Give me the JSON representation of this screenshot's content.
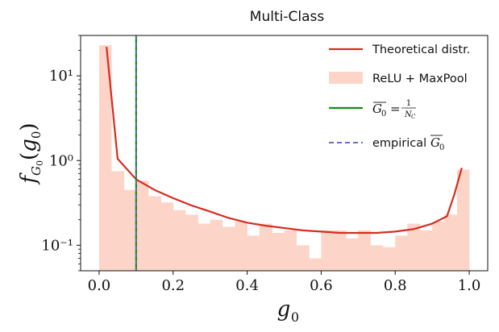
{
  "chart_data": {
    "type": "bar",
    "title": "Multi-Class",
    "xlabel": "g₀",
    "ylabel": "f_{G₀}(g₀)",
    "xscale": "linear",
    "yscale": "log",
    "xlim": [
      -0.05,
      1.05
    ],
    "ylim": [
      0.05,
      30
    ],
    "xticks": [
      0.0,
      0.2,
      0.4,
      0.6,
      0.8,
      1.0
    ],
    "xtick_labels": [
      "0.0",
      "0.2",
      "0.4",
      "0.6",
      "0.8",
      "1.0"
    ],
    "yticks": [
      0.1,
      1,
      10
    ],
    "ytick_labels": [
      "10⁻¹",
      "10⁰",
      "10¹"
    ],
    "legend_position": "top-right",
    "histogram": {
      "name": "ReLU + MaxPool",
      "color": "#fdd5c8",
      "bin_edges": [
        0.0,
        0.033,
        0.067,
        0.1,
        0.133,
        0.167,
        0.2,
        0.233,
        0.267,
        0.3,
        0.333,
        0.367,
        0.4,
        0.433,
        0.467,
        0.5,
        0.533,
        0.567,
        0.6,
        0.633,
        0.667,
        0.7,
        0.733,
        0.767,
        0.8,
        0.833,
        0.867,
        0.9,
        0.933,
        0.967,
        1.0
      ],
      "values": [
        23,
        0.75,
        0.45,
        0.58,
        0.38,
        0.32,
        0.26,
        0.23,
        0.18,
        0.2,
        0.165,
        0.19,
        0.13,
        0.18,
        0.14,
        0.15,
        0.1,
        0.07,
        0.15,
        0.15,
        0.12,
        0.15,
        0.1,
        0.095,
        0.13,
        0.18,
        0.15,
        0.19,
        0.23,
        0.78
      ]
    },
    "theoretical": {
      "name": "Theoretical distr.",
      "color": "#d62d20",
      "x": [
        0.02,
        0.05,
        0.1,
        0.15,
        0.2,
        0.25,
        0.3,
        0.35,
        0.4,
        0.45,
        0.5,
        0.55,
        0.6,
        0.65,
        0.7,
        0.75,
        0.8,
        0.85,
        0.9,
        0.94,
        0.96,
        0.98
      ],
      "y": [
        22,
        1.05,
        0.6,
        0.45,
        0.36,
        0.295,
        0.25,
        0.21,
        0.185,
        0.17,
        0.16,
        0.15,
        0.145,
        0.14,
        0.14,
        0.14,
        0.145,
        0.155,
        0.18,
        0.22,
        0.4,
        0.82
      ]
    },
    "vlines": [
      {
        "name": "G₀ bar = 1/N_C",
        "x": 0.1,
        "color": "#1a8a1a",
        "style": "solid"
      },
      {
        "name": "empirical G₀ bar",
        "x": 0.1,
        "color": "#6c6cc9",
        "style": "dashed"
      }
    ],
    "legend": [
      {
        "kind": "line",
        "label": "Theoretical distr.",
        "color": "#d62d20"
      },
      {
        "kind": "patch",
        "label": "ReLU + MaxPool",
        "color": "#fdd5c8"
      },
      {
        "kind": "line",
        "label": "G₀ = 1/N_C",
        "color": "#1a8a1a"
      },
      {
        "kind": "dash",
        "label": "empirical G₀",
        "color": "#6c6cc9"
      }
    ]
  }
}
